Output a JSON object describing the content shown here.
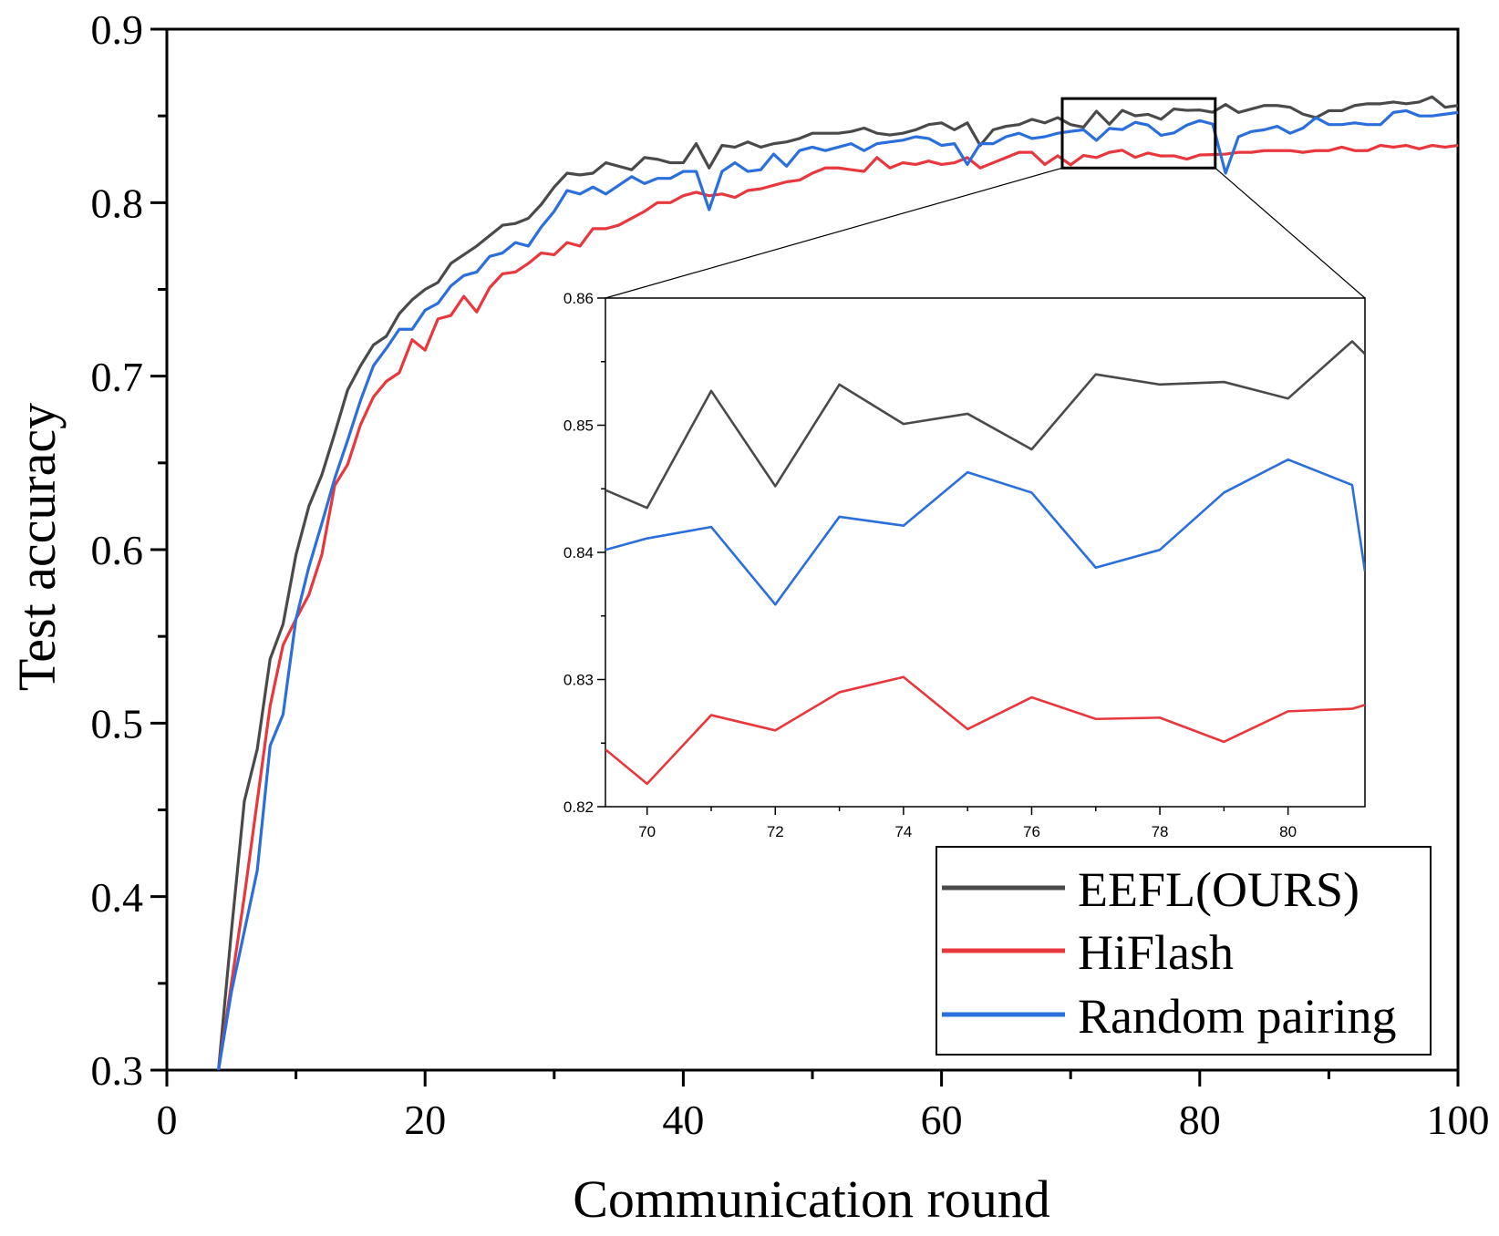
{
  "chart_data": {
    "type": "line",
    "xlabel": "Communication round",
    "ylabel": "Test accuracy",
    "xlim": [
      0,
      100
    ],
    "ylim": [
      0.3,
      0.9
    ],
    "xticks": [
      0,
      20,
      40,
      60,
      80,
      100
    ],
    "yticks": [
      0.3,
      0.4,
      0.5,
      0.6,
      0.7,
      0.8,
      0.9
    ],
    "xtick_labels": [
      "0",
      "20",
      "40",
      "60",
      "80",
      "100"
    ],
    "ytick_labels": [
      "0.3",
      "0.4",
      "0.5",
      "0.6",
      "0.7",
      "0.8",
      "0.9"
    ],
    "legend_position": "bottom-right",
    "series": [
      {
        "name": "EEFL(OURS)",
        "color": "#4a4a4a",
        "x": [
          4,
          5,
          6,
          7,
          8,
          9,
          10,
          11,
          12,
          13,
          14,
          15,
          16,
          17,
          18,
          19,
          20,
          21,
          22,
          23,
          24,
          25,
          26,
          27,
          28,
          29,
          30,
          31,
          32,
          33,
          34,
          35,
          36,
          37,
          38,
          39,
          40,
          41,
          42,
          43,
          44,
          45,
          46,
          47,
          48,
          49,
          50,
          51,
          52,
          53,
          54,
          55,
          56,
          57,
          58,
          59,
          60,
          61,
          62,
          63,
          64,
          65,
          66,
          67,
          68,
          69,
          70,
          71,
          72,
          73,
          74,
          75,
          76,
          77,
          78,
          79,
          80,
          81,
          82,
          83,
          84,
          85,
          86,
          87,
          88,
          89,
          90,
          91,
          92,
          93,
          94,
          95,
          96,
          97,
          98,
          99,
          100
        ],
        "y": [
          0.3,
          0.38,
          0.455,
          0.485,
          0.537,
          0.557,
          0.597,
          0.625,
          0.643,
          0.667,
          0.692,
          0.706,
          0.718,
          0.723,
          0.736,
          0.744,
          0.75,
          0.754,
          0.765,
          0.77,
          0.775,
          0.781,
          0.787,
          0.788,
          0.791,
          0.799,
          0.809,
          0.817,
          0.816,
          0.817,
          0.823,
          0.821,
          0.819,
          0.826,
          0.825,
          0.823,
          0.823,
          0.834,
          0.82,
          0.833,
          0.832,
          0.835,
          0.832,
          0.834,
          0.835,
          0.837,
          0.84,
          0.84,
          0.84,
          0.841,
          0.843,
          0.84,
          0.839,
          0.84,
          0.842,
          0.845,
          0.846,
          0.842,
          0.846,
          0.833,
          0.842,
          0.844,
          0.845,
          0.848,
          0.846,
          0.849,
          0.845,
          0.8435,
          0.8527,
          0.8452,
          0.8532,
          0.8501,
          0.8509,
          0.8481,
          0.854,
          0.8532,
          0.8534,
          0.8521,
          0.8566,
          0.852,
          0.854,
          0.856,
          0.856,
          0.855,
          0.851,
          0.849,
          0.853,
          0.853,
          0.856,
          0.857,
          0.857,
          0.858,
          0.857,
          0.858,
          0.861,
          0.855,
          0.856
        ]
      },
      {
        "name": "HiFlash",
        "color": "#e8383d",
        "x": [
          4,
          5,
          6,
          7,
          8,
          9,
          10,
          11,
          12,
          13,
          14,
          15,
          16,
          17,
          18,
          19,
          20,
          21,
          22,
          23,
          24,
          25,
          26,
          27,
          28,
          29,
          30,
          31,
          32,
          33,
          34,
          35,
          36,
          37,
          38,
          39,
          40,
          41,
          42,
          43,
          44,
          45,
          46,
          47,
          48,
          49,
          50,
          51,
          52,
          53,
          54,
          55,
          56,
          57,
          58,
          59,
          60,
          61,
          62,
          63,
          64,
          65,
          66,
          67,
          68,
          69,
          70,
          71,
          72,
          73,
          74,
          75,
          76,
          77,
          78,
          79,
          80,
          81,
          82,
          83,
          84,
          85,
          86,
          87,
          88,
          89,
          90,
          91,
          92,
          93,
          94,
          95,
          96,
          97,
          98,
          99,
          100
        ],
        "y": [
          0.3,
          0.35,
          0.4,
          0.455,
          0.51,
          0.545,
          0.56,
          0.574,
          0.597,
          0.637,
          0.649,
          0.672,
          0.688,
          0.697,
          0.702,
          0.721,
          0.715,
          0.733,
          0.735,
          0.746,
          0.737,
          0.751,
          0.759,
          0.76,
          0.765,
          0.771,
          0.77,
          0.777,
          0.775,
          0.785,
          0.785,
          0.787,
          0.791,
          0.795,
          0.8,
          0.8,
          0.804,
          0.806,
          0.804,
          0.805,
          0.803,
          0.807,
          0.808,
          0.81,
          0.812,
          0.813,
          0.817,
          0.82,
          0.82,
          0.819,
          0.818,
          0.826,
          0.82,
          0.823,
          0.822,
          0.824,
          0.822,
          0.823,
          0.826,
          0.82,
          0.823,
          0.826,
          0.829,
          0.829,
          0.822,
          0.827,
          0.8218,
          0.8272,
          0.826,
          0.829,
          0.8302,
          0.8261,
          0.8286,
          0.8269,
          0.827,
          0.8251,
          0.8275,
          0.8277,
          0.828,
          0.829,
          0.829,
          0.83,
          0.83,
          0.83,
          0.829,
          0.83,
          0.83,
          0.832,
          0.83,
          0.83,
          0.833,
          0.832,
          0.833,
          0.831,
          0.833,
          0.832,
          0.833
        ]
      },
      {
        "name": "Random pairing",
        "color": "#2a6fdb",
        "x": [
          4,
          5,
          6,
          7,
          8,
          9,
          10,
          11,
          12,
          13,
          14,
          15,
          16,
          17,
          18,
          19,
          20,
          21,
          22,
          23,
          24,
          25,
          26,
          27,
          28,
          29,
          30,
          31,
          32,
          33,
          34,
          35,
          36,
          37,
          38,
          39,
          40,
          41,
          42,
          43,
          44,
          45,
          46,
          47,
          48,
          49,
          50,
          51,
          52,
          53,
          54,
          55,
          56,
          57,
          58,
          59,
          60,
          61,
          62,
          63,
          64,
          65,
          66,
          67,
          68,
          69,
          70,
          71,
          72,
          73,
          74,
          75,
          76,
          77,
          78,
          79,
          80,
          81,
          82,
          83,
          84,
          85,
          86,
          87,
          88,
          89,
          90,
          91,
          92,
          93,
          94,
          95,
          96,
          97,
          98,
          99,
          100
        ],
        "y": [
          0.3,
          0.345,
          0.38,
          0.415,
          0.487,
          0.505,
          0.56,
          0.59,
          0.615,
          0.641,
          0.663,
          0.686,
          0.706,
          0.716,
          0.727,
          0.727,
          0.738,
          0.742,
          0.752,
          0.758,
          0.76,
          0.769,
          0.771,
          0.777,
          0.775,
          0.786,
          0.795,
          0.807,
          0.805,
          0.809,
          0.805,
          0.81,
          0.815,
          0.811,
          0.814,
          0.814,
          0.818,
          0.818,
          0.796,
          0.818,
          0.823,
          0.818,
          0.819,
          0.828,
          0.821,
          0.83,
          0.832,
          0.83,
          0.832,
          0.834,
          0.83,
          0.834,
          0.835,
          0.836,
          0.838,
          0.837,
          0.833,
          0.834,
          0.822,
          0.834,
          0.834,
          0.838,
          0.84,
          0.837,
          0.838,
          0.84,
          0.8411,
          0.842,
          0.8359,
          0.8428,
          0.8421,
          0.8463,
          0.8447,
          0.8388,
          0.8402,
          0.8447,
          0.8473,
          0.8453,
          0.817,
          0.838,
          0.841,
          0.842,
          0.844,
          0.84,
          0.843,
          0.849,
          0.845,
          0.845,
          0.846,
          0.845,
          0.845,
          0.852,
          0.853,
          0.85,
          0.85,
          0.851,
          0.852
        ]
      }
    ],
    "inset": {
      "xlim": [
        69.35,
        81.2
      ],
      "ylim": [
        0.82,
        0.86
      ],
      "xticks": [
        70,
        72,
        74,
        76,
        78,
        80
      ],
      "yticks": [
        0.82,
        0.83,
        0.84,
        0.85,
        0.86
      ],
      "xtick_labels": [
        "70",
        "72",
        "74",
        "76",
        "78",
        "80"
      ],
      "ytick_labels": [
        "0.82",
        "0.83",
        "0.84",
        "0.85",
        "0.86"
      ],
      "series": [
        {
          "name": "EEFL(OURS)",
          "x": [
            69.35,
            70,
            71,
            72,
            73,
            74,
            75,
            76,
            77,
            78,
            79,
            80,
            81,
            81.2
          ],
          "y": [
            0.8449,
            0.8435,
            0.8527,
            0.8452,
            0.8532,
            0.8501,
            0.8509,
            0.8481,
            0.854,
            0.8532,
            0.8534,
            0.8521,
            0.8566,
            0.8556
          ]
        },
        {
          "name": "HiFlash",
          "x": [
            69.35,
            70,
            71,
            72,
            73,
            74,
            75,
            76,
            77,
            78,
            79,
            80,
            81,
            81.2
          ],
          "y": [
            0.8245,
            0.8218,
            0.8272,
            0.826,
            0.829,
            0.8302,
            0.8261,
            0.8286,
            0.8269,
            0.827,
            0.8251,
            0.8275,
            0.8277,
            0.828
          ]
        },
        {
          "name": "Random pairing",
          "x": [
            69.35,
            70,
            71,
            72,
            73,
            74,
            75,
            76,
            77,
            78,
            79,
            80,
            81,
            81.2
          ],
          "y": [
            0.8402,
            0.8411,
            0.842,
            0.8359,
            0.8428,
            0.8421,
            0.8463,
            0.8447,
            0.8388,
            0.8402,
            0.8447,
            0.8473,
            0.8453,
            0.8385
          ]
        }
      ]
    }
  }
}
